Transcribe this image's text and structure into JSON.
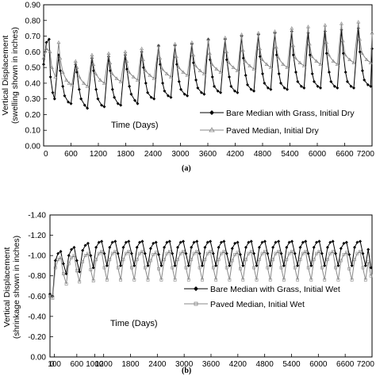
{
  "chart_data": [
    {
      "type": "line",
      "panel_label": "(a)",
      "ylabel": "Vertical Displacement",
      "ylabel2": "(swelling shown in inches)",
      "xlabel": "Time (Days)",
      "ylim": [
        0.0,
        0.9
      ],
      "yticks": [
        "0.00",
        "0.10",
        "0.20",
        "0.30",
        "0.40",
        "0.50",
        "0.60",
        "0.70",
        "0.80",
        "0.90"
      ],
      "xlim": [
        0,
        7200
      ],
      "xticks": [
        "0",
        "600",
        "1200",
        "1800",
        "2400",
        "3000",
        "3600",
        "4200",
        "4800",
        "5400",
        "6000",
        "6600",
        "7200"
      ],
      "grid": false,
      "legend_position": "lower-right",
      "series": [
        {
          "name": "Bare Median with Grass, Initial Dry",
          "color": "#000000",
          "marker": "diamond",
          "x": [
            0,
            60,
            120,
            150,
            200,
            240,
            330,
            365,
            420,
            460,
            540,
            600,
            700,
            730,
            780,
            820,
            900,
            960,
            1060,
            1095,
            1150,
            1190,
            1270,
            1330,
            1425,
            1460,
            1510,
            1550,
            1630,
            1690,
            1790,
            1825,
            1880,
            1920,
            2000,
            2060,
            2150,
            2190,
            2240,
            2280,
            2360,
            2420,
            2520,
            2555,
            2610,
            2650,
            2730,
            2790,
            2880,
            2920,
            2970,
            3010,
            3090,
            3150,
            3250,
            3285,
            3340,
            3380,
            3460,
            3520,
            3610,
            3650,
            3700,
            3740,
            3820,
            3880,
            3980,
            4015,
            4070,
            4110,
            4190,
            4250,
            4340,
            4380,
            4430,
            4470,
            4550,
            4610,
            4710,
            4745,
            4800,
            4840,
            4920,
            4980,
            5070,
            5110,
            5160,
            5200,
            5280,
            5340,
            5440,
            5475,
            5530,
            5570,
            5650,
            5710,
            5800,
            5840,
            5890,
            5930,
            6010,
            6070,
            6170,
            6205,
            6260,
            6300,
            6380,
            6440,
            6530,
            6570,
            6620,
            6660,
            6740,
            6800,
            6900,
            6935,
            6990,
            7030,
            7110,
            7170,
            7200
          ],
          "y": [
            0.52,
            0.66,
            0.68,
            0.44,
            0.34,
            0.3,
            0.58,
            0.48,
            0.38,
            0.32,
            0.28,
            0.27,
            0.52,
            0.47,
            0.36,
            0.3,
            0.26,
            0.24,
            0.56,
            0.48,
            0.36,
            0.3,
            0.26,
            0.25,
            0.57,
            0.48,
            0.36,
            0.31,
            0.27,
            0.26,
            0.58,
            0.49,
            0.38,
            0.33,
            0.29,
            0.27,
            0.6,
            0.5,
            0.4,
            0.34,
            0.31,
            0.3,
            0.64,
            0.52,
            0.4,
            0.35,
            0.32,
            0.31,
            0.64,
            0.52,
            0.41,
            0.36,
            0.33,
            0.32,
            0.65,
            0.53,
            0.42,
            0.37,
            0.34,
            0.33,
            0.68,
            0.55,
            0.44,
            0.38,
            0.35,
            0.34,
            0.68,
            0.55,
            0.44,
            0.38,
            0.35,
            0.34,
            0.7,
            0.56,
            0.45,
            0.39,
            0.36,
            0.35,
            0.71,
            0.57,
            0.46,
            0.4,
            0.37,
            0.36,
            0.72,
            0.58,
            0.46,
            0.4,
            0.37,
            0.36,
            0.73,
            0.58,
            0.47,
            0.41,
            0.38,
            0.37,
            0.72,
            0.58,
            0.46,
            0.41,
            0.38,
            0.37,
            0.73,
            0.59,
            0.47,
            0.41,
            0.38,
            0.37,
            0.74,
            0.59,
            0.47,
            0.41,
            0.38,
            0.37,
            0.75,
            0.6,
            0.48,
            0.42,
            0.39,
            0.38,
            0.62
          ]
        },
        {
          "name": "Paved Median, Initial Dry",
          "color": "#888888",
          "marker": "triangle",
          "x": [
            0,
            60,
            140,
            180,
            260,
            330,
            360,
            420,
            500,
            560,
            620,
            700,
            730,
            780,
            880,
            960,
            1060,
            1090,
            1140,
            1240,
            1330,
            1425,
            1455,
            1500,
            1600,
            1690,
            1790,
            1820,
            1870,
            1970,
            2060,
            2150,
            2180,
            2230,
            2330,
            2420,
            2520,
            2550,
            2600,
            2700,
            2790,
            2880,
            2910,
            2960,
            3060,
            3150,
            3250,
            3280,
            3330,
            3430,
            3520,
            3610,
            3640,
            3690,
            3790,
            3880,
            3980,
            4010,
            4060,
            4160,
            4250,
            4340,
            4370,
            4420,
            4520,
            4610,
            4710,
            4740,
            4790,
            4890,
            4980,
            5070,
            5100,
            5150,
            5250,
            5340,
            5440,
            5470,
            5520,
            5620,
            5710,
            5800,
            5830,
            5880,
            5980,
            6070,
            6170,
            6200,
            6250,
            6350,
            6440,
            6530,
            6560,
            6610,
            6710,
            6800,
            6900,
            6930,
            6980,
            7080,
            7170,
            7200
          ],
          "y": [
            0.56,
            0.62,
            0.6,
            0.5,
            0.44,
            0.66,
            0.56,
            0.47,
            0.42,
            0.4,
            0.39,
            0.54,
            0.5,
            0.44,
            0.4,
            0.38,
            0.58,
            0.52,
            0.46,
            0.42,
            0.4,
            0.59,
            0.53,
            0.46,
            0.43,
            0.41,
            0.6,
            0.54,
            0.47,
            0.44,
            0.42,
            0.62,
            0.55,
            0.48,
            0.45,
            0.43,
            0.64,
            0.56,
            0.49,
            0.46,
            0.44,
            0.65,
            0.57,
            0.5,
            0.47,
            0.45,
            0.66,
            0.58,
            0.51,
            0.48,
            0.46,
            0.68,
            0.59,
            0.52,
            0.49,
            0.47,
            0.69,
            0.6,
            0.53,
            0.5,
            0.48,
            0.71,
            0.61,
            0.54,
            0.51,
            0.49,
            0.72,
            0.62,
            0.55,
            0.52,
            0.5,
            0.73,
            0.63,
            0.56,
            0.52,
            0.5,
            0.75,
            0.64,
            0.56,
            0.53,
            0.51,
            0.76,
            0.65,
            0.57,
            0.54,
            0.52,
            0.77,
            0.66,
            0.58,
            0.54,
            0.52,
            0.78,
            0.67,
            0.58,
            0.55,
            0.53,
            0.79,
            0.68,
            0.59,
            0.55,
            0.53,
            0.72
          ]
        }
      ]
    },
    {
      "type": "line",
      "panel_label": "(b)",
      "ylabel": "Vertical Displacement",
      "ylabel2": "(shrinkage shown in inches)",
      "xlabel": "Time (Days)",
      "ylim": [
        0.0,
        -1.4
      ],
      "yticks": [
        "0.00",
        "-0.20",
        "-0.40",
        "-0.60",
        "-0.80",
        "-1.00",
        "-1.20",
        "-1.40"
      ],
      "xlim": [
        0,
        7200
      ],
      "xticks": [
        "0",
        "100",
        "600",
        "1000",
        "1200",
        "1800",
        "2400",
        "3000",
        "3600",
        "4200",
        "4800",
        "5400",
        "6000",
        "6600",
        "7200"
      ],
      "grid": false,
      "legend_position": "middle-right",
      "series": [
        {
          "name": "Bare Median with Grass, Initial Wet",
          "color": "#000000",
          "marker": "diamond",
          "x": [
            0,
            60,
            120,
            180,
            240,
            300,
            365,
            420,
            480,
            540,
            600,
            660,
            730,
            790,
            850,
            910,
            970,
            1030,
            1095,
            1155,
            1215,
            1275,
            1335,
            1395,
            1460,
            1520,
            1580,
            1640,
            1700,
            1760,
            1825,
            1885,
            1945,
            2005,
            2065,
            2125,
            2190,
            2250,
            2310,
            2370,
            2430,
            2490,
            2555,
            2615,
            2675,
            2735,
            2795,
            2855,
            2920,
            2980,
            3040,
            3100,
            3160,
            3220,
            3285,
            3345,
            3405,
            3465,
            3525,
            3585,
            3650,
            3710,
            3770,
            3830,
            3890,
            3950,
            4015,
            4075,
            4135,
            4195,
            4255,
            4315,
            4380,
            4440,
            4500,
            4560,
            4620,
            4680,
            4745,
            4805,
            4865,
            4925,
            4985,
            5045,
            5110,
            5170,
            5230,
            5290,
            5350,
            5410,
            5475,
            5535,
            5595,
            5655,
            5715,
            5775,
            5840,
            5900,
            5960,
            6020,
            6080,
            6140,
            6205,
            6265,
            6325,
            6385,
            6445,
            6505,
            6570,
            6630,
            6690,
            6750,
            6810,
            6870,
            6935,
            6995,
            7055,
            7115,
            7175
          ],
          "y": [
            -0.62,
            -0.6,
            -0.95,
            -1.02,
            -1.04,
            -0.92,
            -0.82,
            -1.0,
            -1.06,
            -1.08,
            -0.95,
            -0.84,
            -1.05,
            -1.1,
            -1.12,
            -1.0,
            -0.88,
            -1.08,
            -1.13,
            -1.14,
            -1.02,
            -0.9,
            -1.08,
            -1.13,
            -1.14,
            -1.02,
            -0.9,
            -1.08,
            -1.13,
            -1.14,
            -1.02,
            -0.9,
            -1.08,
            -1.13,
            -1.14,
            -1.02,
            -0.9,
            -1.07,
            -1.12,
            -1.13,
            -1.01,
            -0.9,
            -1.08,
            -1.13,
            -1.14,
            -1.02,
            -0.9,
            -1.08,
            -1.13,
            -1.14,
            -1.02,
            -0.9,
            -1.08,
            -1.13,
            -1.14,
            -1.02,
            -0.9,
            -1.08,
            -1.13,
            -1.14,
            -1.02,
            -0.9,
            -1.08,
            -1.13,
            -1.14,
            -1.02,
            -0.9,
            -1.07,
            -1.12,
            -1.13,
            -1.01,
            -0.9,
            -1.08,
            -1.13,
            -1.14,
            -1.02,
            -0.9,
            -1.08,
            -1.13,
            -1.14,
            -1.02,
            -0.9,
            -1.08,
            -1.13,
            -1.14,
            -1.02,
            -0.9,
            -1.08,
            -1.13,
            -1.14,
            -1.02,
            -0.9,
            -1.08,
            -1.13,
            -1.14,
            -1.02,
            -0.9,
            -1.08,
            -1.13,
            -1.14,
            -1.02,
            -0.9,
            -1.08,
            -1.13,
            -1.14,
            -1.02,
            -0.9,
            -1.07,
            -1.12,
            -1.13,
            -1.01,
            -0.9,
            -1.08,
            -1.13,
            -1.14,
            -1.02,
            -0.9,
            -1.06,
            -0.88
          ]
        },
        {
          "name": "Paved Median, Initial Wet",
          "color": "#888888",
          "marker": "square",
          "x": [
            0,
            60,
            120,
            180,
            240,
            300,
            365,
            420,
            480,
            540,
            600,
            660,
            730,
            790,
            850,
            910,
            970,
            1030,
            1095,
            1155,
            1215,
            1275,
            1335,
            1395,
            1460,
            1520,
            1580,
            1640,
            1700,
            1760,
            1825,
            1885,
            1945,
            2005,
            2065,
            2125,
            2190,
            2250,
            2310,
            2370,
            2430,
            2490,
            2555,
            2615,
            2675,
            2735,
            2795,
            2855,
            2920,
            2980,
            3040,
            3100,
            3160,
            3220,
            3285,
            3345,
            3405,
            3465,
            3525,
            3585,
            3650,
            3710,
            3770,
            3830,
            3890,
            3950,
            4015,
            4075,
            4135,
            4195,
            4255,
            4315,
            4380,
            4440,
            4500,
            4560,
            4620,
            4680,
            4745,
            4805,
            4865,
            4925,
            4985,
            5045,
            5110,
            5170,
            5230,
            5290,
            5350,
            5410,
            5475,
            5535,
            5595,
            5655,
            5715,
            5775,
            5840,
            5900,
            5960,
            6020,
            6080,
            6140,
            6205,
            6265,
            6325,
            6385,
            6445,
            6505,
            6570,
            6630,
            6690,
            6750,
            6810,
            6870,
            6935,
            6995,
            7055,
            7115,
            7175
          ],
          "y": [
            -0.6,
            -0.58,
            -0.88,
            -0.96,
            -0.98,
            -0.82,
            -0.72,
            -0.92,
            -0.98,
            -1.0,
            -0.85,
            -0.74,
            -0.94,
            -1.0,
            -1.02,
            -0.86,
            -0.75,
            -0.96,
            -1.02,
            -1.04,
            -0.88,
            -0.76,
            -0.96,
            -1.02,
            -1.04,
            -0.88,
            -0.76,
            -0.96,
            -1.02,
            -1.04,
            -0.88,
            -0.76,
            -0.96,
            -1.02,
            -1.04,
            -0.88,
            -0.76,
            -0.95,
            -1.01,
            -1.03,
            -0.87,
            -0.76,
            -0.96,
            -1.02,
            -1.04,
            -0.88,
            -0.76,
            -0.96,
            -1.02,
            -1.04,
            -0.88,
            -0.76,
            -0.96,
            -1.02,
            -1.04,
            -0.88,
            -0.76,
            -0.96,
            -1.02,
            -1.04,
            -0.88,
            -0.76,
            -0.96,
            -1.02,
            -1.04,
            -0.88,
            -0.76,
            -0.95,
            -1.01,
            -1.03,
            -0.87,
            -0.76,
            -0.96,
            -1.02,
            -1.04,
            -0.88,
            -0.76,
            -0.96,
            -1.02,
            -1.04,
            -0.88,
            -0.76,
            -0.96,
            -1.02,
            -1.04,
            -0.88,
            -0.76,
            -0.96,
            -1.02,
            -1.04,
            -0.88,
            -0.76,
            -0.96,
            -1.02,
            -1.04,
            -0.88,
            -0.76,
            -0.96,
            -1.02,
            -1.04,
            -0.88,
            -0.76,
            -0.96,
            -1.02,
            -1.04,
            -0.88,
            -0.76,
            -0.95,
            -1.01,
            -1.03,
            -0.87,
            -0.76,
            -0.96,
            -1.02,
            -1.04,
            -0.88,
            -0.76,
            -0.94,
            -0.8
          ]
        }
      ]
    }
  ]
}
